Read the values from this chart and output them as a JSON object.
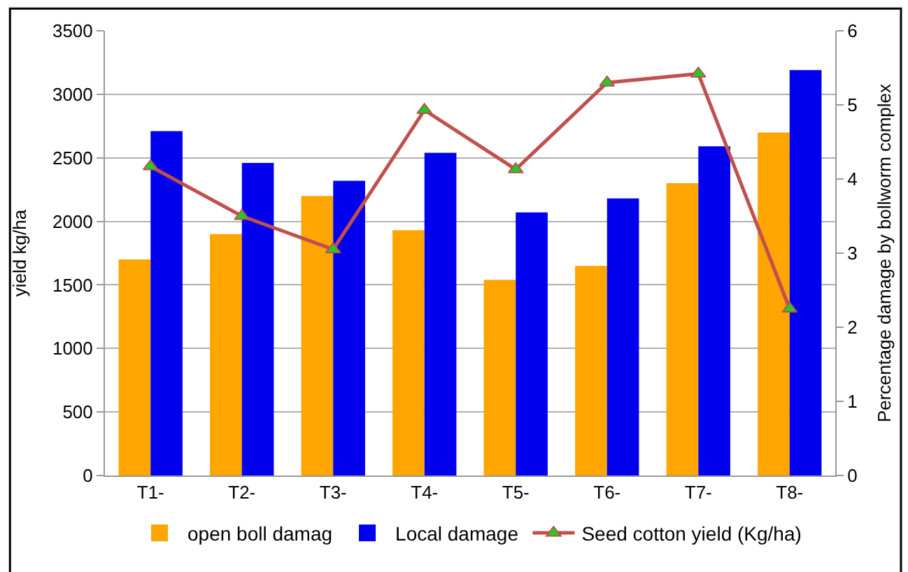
{
  "chart_data": {
    "type": "bar",
    "categories": [
      "T1-",
      "T2-",
      "T3-",
      "T4-",
      "T5-",
      "T6-",
      "T7-",
      "T8-"
    ],
    "ylabel": "yield kg/ha",
    "y2label": "Percentage damage by bollworm complex",
    "ylim": [
      0,
      3500
    ],
    "yticks": [
      0,
      500,
      1000,
      1500,
      2000,
      2500,
      3000,
      3500
    ],
    "y2lim": [
      0,
      6
    ],
    "y2ticks": [
      0,
      1,
      2,
      3,
      4,
      5,
      6
    ],
    "grid": "y",
    "legend": "bottom",
    "series": [
      {
        "name": "open boll damag",
        "color": "#ffa500",
        "values": [
          1700,
          1900,
          2200,
          1930,
          1540,
          1650,
          2300,
          2700
        ]
      },
      {
        "name": "Local damage",
        "color": "#0000ee",
        "values": [
          2710,
          2460,
          2320,
          2540,
          2070,
          2180,
          2590,
          3190
        ]
      },
      {
        "name": "Seed cotton yield (Kg/ha)",
        "type": "line",
        "axis": "y2",
        "color": "#c0504d",
        "marker": "triangle",
        "values": [
          4.17,
          3.5,
          3.05,
          4.93,
          4.13,
          5.3,
          5.42,
          2.25
        ]
      }
    ]
  }
}
